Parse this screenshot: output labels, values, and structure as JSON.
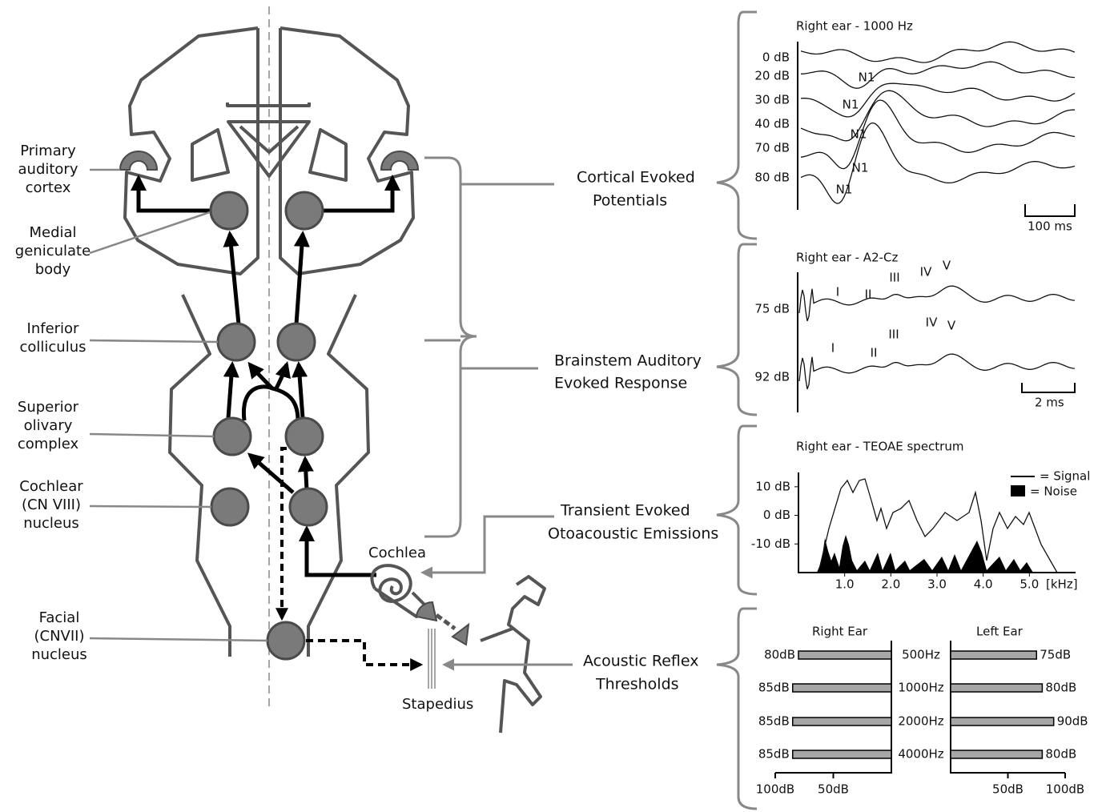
{
  "anatomy": {
    "primary_auditory_cortex": [
      "Primary",
      "auditory",
      "cortex"
    ],
    "medial_geniculate_body": [
      "Medial",
      "geniculate",
      "body"
    ],
    "inferior_colliculus": [
      "Inferior",
      "colliculus"
    ],
    "superior_olivary_complex": [
      "Superior",
      "olivary",
      "complex"
    ],
    "cochlear_nucleus": [
      "Cochlear",
      "(CN VIII)",
      "nucleus"
    ],
    "facial_nucleus": [
      "Facial",
      "(CNVII)",
      "nucleus"
    ],
    "cochlea": "Cochlea",
    "stapedius": "Stapedius"
  },
  "tests": [
    [
      "Cortical Evoked",
      "Potentials"
    ],
    [
      "Brainstem Auditory",
      "Evoked Response"
    ],
    [
      "Transient Evoked",
      "Otoacoustic Emissions"
    ],
    [
      "Acoustic Reflex",
      "Thresholds"
    ]
  ],
  "cortical": {
    "title": "Right ear - 1000 Hz",
    "levels": [
      "0 dB",
      "20 dB",
      "30 dB",
      "40 dB",
      "70 dB",
      "80 dB"
    ],
    "peaks": [
      "N1",
      "N1",
      "N1",
      "N1",
      "N1"
    ],
    "scale": "100 ms"
  },
  "brainstem": {
    "title": "Right ear - A2-Cz",
    "levels": [
      "75 dB",
      "92 dB"
    ],
    "peaks_75": [
      "I",
      "II",
      "III",
      "IV",
      "V"
    ],
    "peaks_92": [
      "I",
      "II",
      "III",
      "IV",
      "V"
    ],
    "scale": "2 ms"
  },
  "teoae": {
    "title": "Right ear - TEOAE spectrum",
    "legend": [
      "= Signal",
      "= Noise"
    ],
    "xlabel": "[kHz]",
    "xlim": [
      0,
      6
    ],
    "xticks": [
      {
        "value": 1,
        "label": "1.0"
      },
      {
        "value": 2,
        "label": "2.0"
      },
      {
        "value": 3,
        "label": "3.0"
      },
      {
        "value": 4,
        "label": "4.0"
      },
      {
        "value": 5,
        "label": "5.0"
      }
    ],
    "ylim": [
      -20,
      15
    ],
    "yticks": [
      {
        "value": 10,
        "label": "10 dB"
      },
      {
        "value": 0,
        "label": "0 dB"
      },
      {
        "value": -10,
        "label": "-10 dB"
      }
    ]
  },
  "reflex": {
    "right_title": "Right Ear",
    "left_title": "Left Ear",
    "frequencies": [
      "500Hz",
      "1000Hz",
      "2000Hz",
      "4000Hz"
    ],
    "right_values": [
      80,
      85,
      85,
      85
    ],
    "right_value_labels": [
      "80dB",
      "85dB",
      "85dB",
      "85dB"
    ],
    "left_values": [
      75,
      80,
      90,
      80
    ],
    "left_value_labels": [
      "75dB",
      "80dB",
      "90dB",
      "80dB"
    ],
    "xlim": [
      0,
      100
    ],
    "bar_color": "#a6a6a6",
    "right_ticks": [
      {
        "value": 100,
        "label": "100dB"
      },
      {
        "value": 50,
        "label": "50dB"
      }
    ],
    "left_ticks": [
      {
        "value": 50,
        "label": "50dB"
      },
      {
        "value": 100,
        "label": "100dB"
      }
    ]
  }
}
